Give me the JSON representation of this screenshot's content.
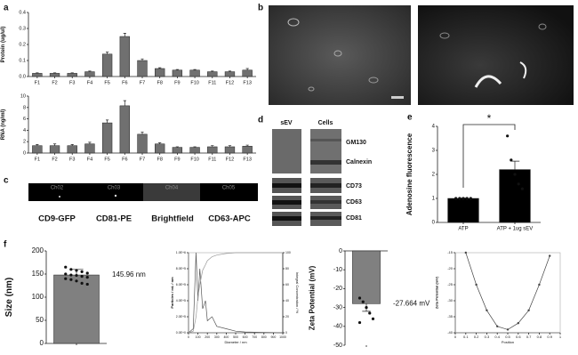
{
  "panels": {
    "labels": [
      "a",
      "b",
      "c",
      "d",
      "e",
      "f"
    ],
    "channels": [
      "Ch02",
      "Ch03",
      "Ch04",
      "Ch05"
    ],
    "markers": [
      "CD9-GFP",
      "CD81-PE",
      "Brightfield",
      "CD63-APC"
    ],
    "blot_columns": [
      "sEV",
      "Cells"
    ],
    "blot_rows": [
      "GM130",
      "Calnexin",
      "CD73",
      "CD63",
      "CD81"
    ]
  },
  "chart_data": [
    {
      "type": "bar",
      "y_label": "Protein (ug/ul)",
      "color": "#707070",
      "categories": [
        "F1",
        "F2",
        "F3",
        "F4",
        "F5",
        "F6",
        "F7",
        "F8",
        "F9",
        "F10",
        "F11",
        "F12",
        "F13"
      ],
      "values": [
        0.02,
        0.02,
        0.02,
        0.03,
        0.14,
        0.25,
        0.1,
        0.05,
        0.04,
        0.04,
        0.03,
        0.03,
        0.04
      ],
      "errors": [
        0.003,
        0.003,
        0.003,
        0.004,
        0.012,
        0.02,
        0.01,
        0.005,
        0.004,
        0.004,
        0.004,
        0.004,
        0.01
      ],
      "ylim": [
        0,
        0.4
      ],
      "yticks": [
        {
          "value": 0,
          "label": "0.0"
        },
        0.1,
        0.2,
        0.3,
        0.4
      ],
      "grid": false
    },
    {
      "type": "bar",
      "y_label": "RNA (ng/ml)",
      "color": "#707070",
      "categories": [
        "F1",
        "F2",
        "F3",
        "F4",
        "F5",
        "F6",
        "F7",
        "F8",
        "F9",
        "F10",
        "F11",
        "F12",
        "F13"
      ],
      "values": [
        1.3,
        1.3,
        1.3,
        1.6,
        5.3,
        8.3,
        3.3,
        1.6,
        1.0,
        1.0,
        1.1,
        1.1,
        1.2
      ],
      "errors": [
        0.2,
        0.3,
        0.2,
        0.3,
        0.5,
        0.9,
        0.4,
        0.2,
        0.1,
        0.1,
        0.2,
        0.2,
        0.2
      ],
      "ylim": [
        0,
        10
      ],
      "yticks": [
        0,
        2,
        4,
        6,
        8,
        10
      ],
      "grid": false
    },
    {
      "type": "bar",
      "y_label": "Adenosine fluorescence",
      "color": "#000000",
      "categories": [
        "ATP",
        "ATP + 1ug sEV"
      ],
      "values": [
        1.0,
        2.2
      ],
      "errors": [
        0.02,
        0.35
      ],
      "points": [
        [
          1,
          1,
          1,
          1,
          1
        ],
        [
          3.6,
          2.6,
          2.0,
          1.6,
          1.4
        ]
      ],
      "annotation": "*",
      "ylim": [
        0,
        4
      ],
      "yticks": [
        0,
        1,
        2,
        3,
        4
      ],
      "grid": false
    },
    {
      "type": "bar",
      "y_label": "Size (nm)",
      "color": "#808080",
      "categories": [
        null
      ],
      "values": [
        148
      ],
      "errors": [
        12
      ],
      "points": [
        [
          165,
          160,
          158,
          155,
          152,
          150,
          148,
          147,
          145,
          143,
          140,
          138,
          135,
          130,
          128
        ]
      ],
      "annotation": "145.96 nm",
      "ylim": [
        0,
        200
      ],
      "yticks": [
        0,
        50,
        100,
        150,
        200
      ],
      "grid": false
    },
    {
      "type": "line",
      "x_label": "Diameter / nm",
      "y_label": "Particles / mL / nm",
      "y2_label": "Integral Concentration / %",
      "x": [
        0,
        50,
        80,
        100,
        120,
        150,
        180,
        200,
        250,
        300,
        400,
        500,
        600,
        800,
        1000
      ],
      "series": [
        {
          "color": "#555555",
          "values": [
            0,
            50000,
            1000000,
            400000,
            800000,
            300000,
            400000,
            150000,
            200000,
            80000,
            50000,
            20000,
            10000,
            5000,
            0
          ]
        },
        {
          "color": "#999999",
          "axis": "y2",
          "values": [
            0,
            2,
            20,
            45,
            60,
            78,
            85,
            90,
            95,
            97,
            99,
            100,
            100,
            100,
            100
          ]
        }
      ],
      "xlim": [
        0,
        1000
      ],
      "xticks": [
        0,
        100,
        200,
        300,
        400,
        500,
        600,
        700,
        800,
        900,
        1000
      ],
      "ylim": [
        0,
        1000000
      ],
      "yticks": [
        {
          "value": 0,
          "label": "0.0E+0"
        },
        {
          "value": 200000,
          "label": "2.0E+5"
        },
        {
          "value": 400000,
          "label": "4.0E+5"
        },
        {
          "value": 600000,
          "label": "6.0E+5"
        },
        {
          "value": 800000,
          "label": "8.0E+5"
        },
        {
          "value": 1000000,
          "label": "1.0E+6"
        }
      ],
      "y2lim": [
        0,
        100
      ],
      "y2ticks": [
        0,
        20,
        40,
        60,
        80,
        100
      ],
      "grid": false
    },
    {
      "type": "bar",
      "y_label": "Zeta Potential (mV)",
      "color": "#808080",
      "categories": [
        null
      ],
      "values": [
        -28
      ],
      "errors": [
        4
      ],
      "points": [
        [
          -25,
          -27,
          -30,
          -33,
          -36,
          -38
        ]
      ],
      "annotation": "-27.664 mV",
      "ylim": [
        -50,
        0
      ],
      "yticks": [
        -50,
        -40,
        -30,
        -20,
        -10,
        0
      ],
      "grid": false
    },
    {
      "type": "line",
      "x_label": "Position",
      "y_label": "Zeta Potential (mV)",
      "markers": true,
      "x": [
        0.1,
        0.2,
        0.3,
        0.4,
        0.5,
        0.6,
        0.7,
        0.8,
        0.9
      ],
      "series": [
        {
          "color": "#444444",
          "values": [
            -15,
            -25,
            -33,
            -38,
            -39,
            -37,
            -33,
            -25,
            -16
          ]
        }
      ],
      "xlim": [
        0,
        1
      ],
      "xticks": [
        0,
        0.1,
        0.2,
        0.3,
        0.4,
        0.5,
        0.6,
        0.7,
        0.8,
        0.9,
        1
      ],
      "ylim": [
        -40,
        -15
      ],
      "yticks": [
        -40,
        -35,
        -30,
        -25,
        -20,
        -15
      ],
      "grid": false
    }
  ]
}
